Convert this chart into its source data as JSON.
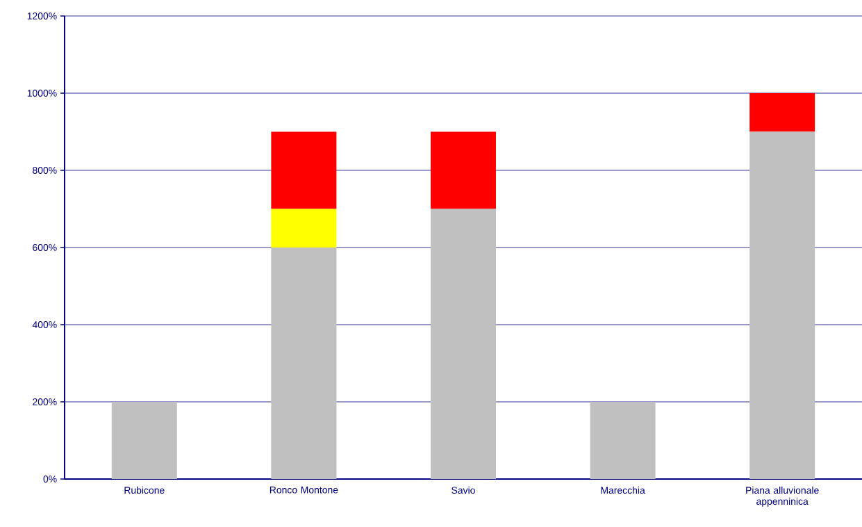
{
  "chart_data": {
    "type": "bar",
    "stacked": true,
    "categories": [
      "Rubicone",
      "Ronco Montone",
      "Savio",
      "Marecchia",
      "Piana alluvionale appenninica"
    ],
    "series": [
      {
        "color": "#c0c0c0",
        "values": [
          200,
          600,
          700,
          200,
          900
        ]
      },
      {
        "color": "#ffff00",
        "values": [
          null,
          100,
          null,
          null,
          null
        ]
      },
      {
        "color": "#ff0000",
        "values": [
          null,
          200,
          200,
          null,
          100
        ]
      }
    ],
    "ylim": [
      0,
      1200
    ],
    "yticks": [
      {
        "value": 0,
        "label": "0%"
      },
      {
        "value": 200,
        "label": "200%"
      },
      {
        "value": 400,
        "label": "400%"
      },
      {
        "value": 600,
        "label": "600%"
      },
      {
        "value": 800,
        "label": "800%"
      },
      {
        "value": 1000,
        "label": "1000%"
      },
      {
        "value": 1200,
        "label": "1200%"
      }
    ],
    "grid": "y"
  }
}
